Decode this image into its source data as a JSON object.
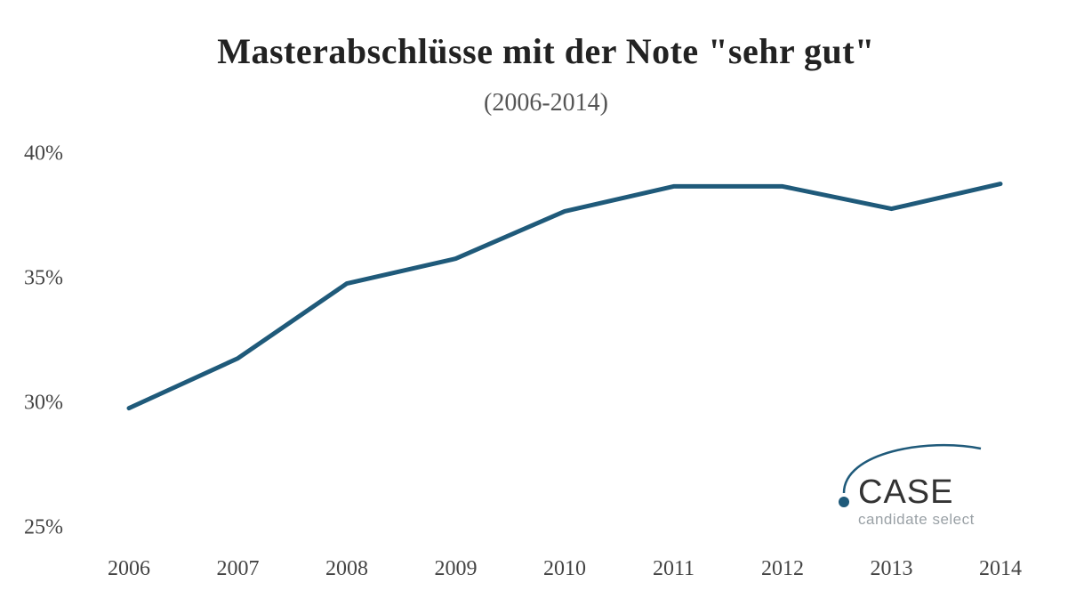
{
  "chart": {
    "type": "line",
    "title": "Masterabschlüsse mit der Note \"sehr gut\"",
    "subtitle": "(2006-2014)",
    "x": [
      2006,
      2007,
      2008,
      2009,
      2010,
      2011,
      2012,
      2013,
      2014
    ],
    "y": [
      29.8,
      31.8,
      34.8,
      35.8,
      37.7,
      38.7,
      38.7,
      37.8,
      38.8
    ],
    "line_color": "#1f5a7a",
    "line_width": 5,
    "ylim": [
      25,
      40
    ],
    "yticks": [
      25,
      30,
      35,
      40
    ],
    "ytick_labels": [
      "25%",
      "30%",
      "35%",
      "40%"
    ],
    "background_color": "#ffffff",
    "title_fontsize": 40,
    "subtitle_fontsize": 28,
    "label_fontsize": 24,
    "axis_text_color": "#444444"
  },
  "logo": {
    "name": "CASE",
    "tagline": "candidate select",
    "arc_color": "#1f5a7a",
    "dot_color": "#1f5a7a",
    "name_color": "#333333",
    "tagline_color": "#9aa1a6"
  }
}
